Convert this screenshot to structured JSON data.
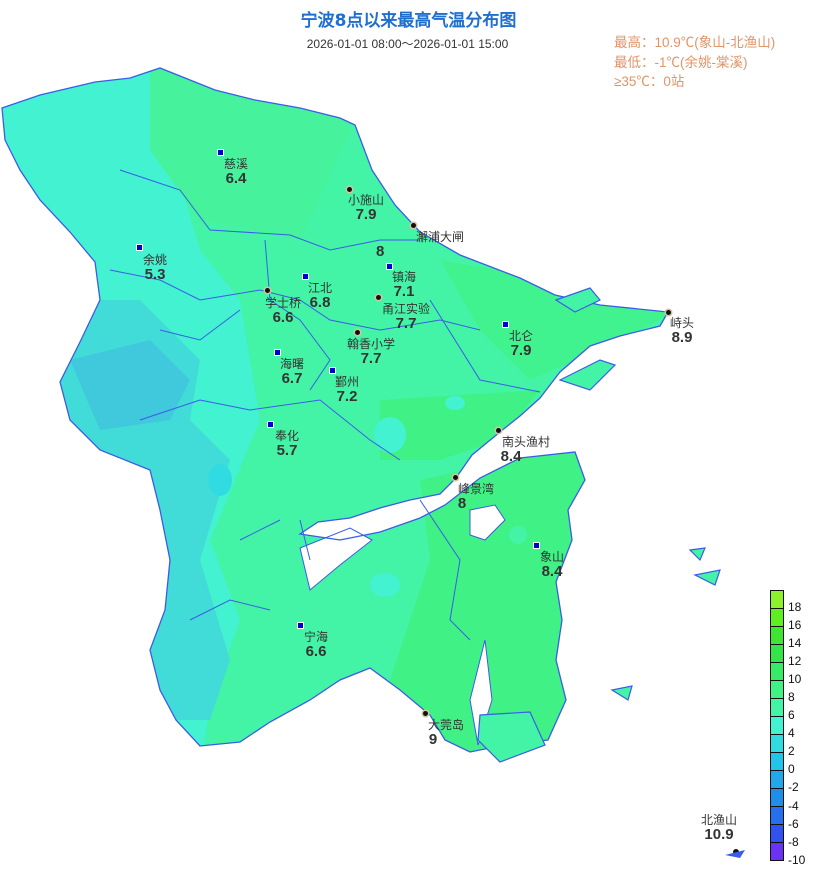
{
  "header": {
    "title": "宁波8点以来最高气温分布图",
    "time_range": "2026-01-01  08:00～2026-01-01 15:00"
  },
  "stats": {
    "max": "最高：10.9℃(象山-北渔山)",
    "min": "最低：-1℃(余姚-棠溪)",
    "hot_count": "≥35℃：0站"
  },
  "stations": [
    {
      "name": "慈溪",
      "value": "6.4",
      "type": "county"
    },
    {
      "name": "小施山",
      "value": "7.9",
      "type": "auto"
    },
    {
      "name": "澥浦大闸",
      "value": "8",
      "type": "auto"
    },
    {
      "name": "余姚",
      "value": "5.3",
      "type": "county"
    },
    {
      "name": "镇海",
      "value": "7.1",
      "type": "county"
    },
    {
      "name": "江北",
      "value": "6.8",
      "type": "county"
    },
    {
      "name": "学士桥",
      "value": "6.6",
      "type": "auto"
    },
    {
      "name": "甬江实验",
      "value": "7.7",
      "type": "auto"
    },
    {
      "name": "北仑",
      "value": "7.9",
      "type": "county"
    },
    {
      "name": "峙头",
      "value": "8.9",
      "type": "auto"
    },
    {
      "name": "翰香小学",
      "value": "7.7",
      "type": "auto"
    },
    {
      "name": "海曙",
      "value": "6.7",
      "type": "county"
    },
    {
      "name": "鄞州",
      "value": "7.2",
      "type": "county"
    },
    {
      "name": "奉化",
      "value": "5.7",
      "type": "county"
    },
    {
      "name": "南头渔村",
      "value": "8.4",
      "type": "auto"
    },
    {
      "name": "峰景湾",
      "value": "8",
      "type": "auto"
    },
    {
      "name": "象山",
      "value": "8.4",
      "type": "county"
    },
    {
      "name": "宁海",
      "value": "6.6",
      "type": "county"
    },
    {
      "name": "大莞岛",
      "value": "9",
      "type": "auto"
    },
    {
      "name": "北渔山",
      "value": "10.9",
      "type": "auto"
    }
  ],
  "legend": {
    "labels": [
      "18",
      "16",
      "14",
      "12",
      "10",
      "8",
      "6",
      "4",
      "2",
      "0",
      "-2",
      "-4",
      "-6",
      "-8",
      "-10"
    ],
    "colors": [
      "#8cf02c",
      "#5eee22",
      "#3ee632",
      "#34e448",
      "#36ec66",
      "#40f286",
      "#44f4a6",
      "#42f2d0",
      "#30dce2",
      "#22c4ea",
      "#22a8ea",
      "#1e8ee8",
      "#2670ee",
      "#3252f0",
      "#6a32f2"
    ]
  },
  "colors": {
    "title": "#1f6fd0",
    "stats": "#e0946a",
    "boundary": "#3a5ce8"
  }
}
